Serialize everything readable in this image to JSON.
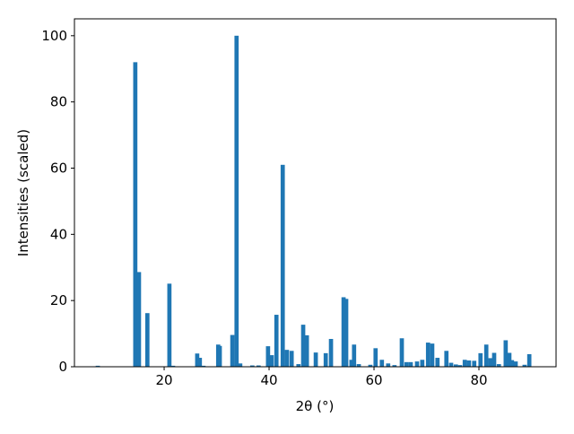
{
  "chart_data": {
    "type": "bar",
    "xlabel": "2θ (°)",
    "ylabel": "Intensities (scaled)",
    "color": "#1f77b4",
    "x": [
      7.35,
      14.5,
      15.2,
      16.8,
      21.0,
      21.7,
      26.3,
      26.8,
      27.5,
      30.3,
      30.6,
      33.0,
      33.8,
      34.5,
      36.8,
      38.0,
      39.8,
      40.5,
      41.4,
      42.6,
      43.4,
      44.3,
      45.6,
      46.5,
      47.2,
      48.9,
      50.8,
      51.8,
      54.2,
      54.7,
      55.7,
      56.2,
      57.1,
      59.3,
      60.3,
      61.5,
      62.7,
      63.9,
      65.3,
      66.2,
      67.0,
      68.2,
      69.2,
      70.3,
      71.1,
      72.1,
      73.8,
      74.7,
      75.6,
      76.4,
      77.3,
      78.1,
      79.1,
      80.3,
      81.4,
      82.2,
      82.9,
      83.8,
      85.1,
      85.8,
      86.3,
      87.0,
      88.7,
      89.6
    ],
    "values": [
      0.3,
      92,
      28.6,
      16.2,
      25.1,
      0.3,
      4,
      2.7,
      0.3,
      6.7,
      6.3,
      9.6,
      100,
      1,
      0.4,
      0.4,
      6.2,
      3.5,
      15.7,
      61,
      5.1,
      4.8,
      0.8,
      12.7,
      9.5,
      4.3,
      4.1,
      8.4,
      21,
      20.5,
      2.1,
      6.7,
      0.8,
      0.6,
      5.6,
      2.1,
      1,
      0.5,
      8.6,
      1.4,
      1.4,
      1.6,
      2.1,
      7.3,
      7,
      2.7,
      4.8,
      1.2,
      0.7,
      0.5,
      2.1,
      1.9,
      1.8,
      4.1,
      6.7,
      2.6,
      4.2,
      0.8,
      8,
      4.2,
      2,
      1.6,
      0.6,
      3.8
    ],
    "xlim": [
      2.9,
      94.7
    ],
    "ylim": [
      0,
      105.1
    ],
    "xticks": [
      20,
      40,
      60,
      80
    ],
    "yticks": [
      0,
      20,
      40,
      60,
      80,
      100
    ],
    "grid": false
  }
}
